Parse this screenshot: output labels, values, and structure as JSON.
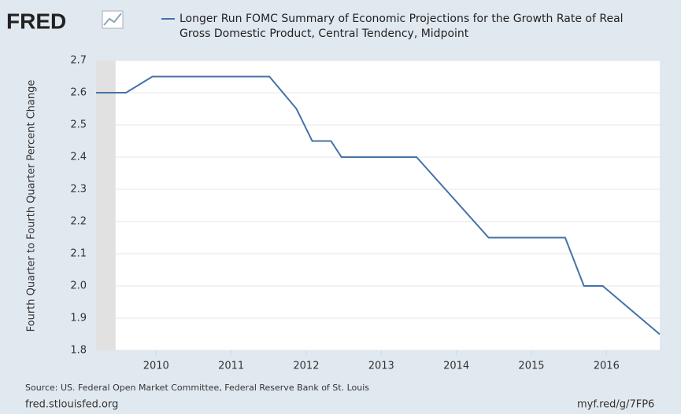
{
  "logo": "FRED",
  "chart_data": {
    "type": "line",
    "series": [
      {
        "name": "Longer Run FOMC Summary of Economic Projections for the Growth Rate of Real Gross Domestic Product, Central Tendency, Midpoint",
        "color": "#4572a7",
        "x": [
          2009.2,
          2009.6,
          2009.95,
          2011.51,
          2011.87,
          2012.08,
          2012.33,
          2012.47,
          2013.47,
          2014.43,
          2015.45,
          2015.7,
          2015.95,
          2016.71
        ],
        "values": [
          2.6,
          2.6,
          2.65,
          2.65,
          2.55,
          2.45,
          2.45,
          2.4,
          2.4,
          2.15,
          2.15,
          2.0,
          2.0,
          1.85
        ]
      }
    ],
    "shaded_ranges": [
      [
        2009.2,
        2009.46
      ]
    ],
    "ylabel": "Fourth Quarter to Fourth Quarter Percent Change",
    "xlim": [
      2009.2,
      2016.71
    ],
    "xticks": [
      2010,
      2011,
      2012,
      2013,
      2014,
      2015,
      2016
    ],
    "ylim": [
      1.8,
      2.7
    ],
    "yticks": [
      1.8,
      1.9,
      {
        "value": 2,
        "label": "2.0"
      },
      2.1,
      2.2,
      2.3,
      2.4,
      2.5,
      2.6,
      2.7
    ],
    "grid": true
  },
  "footer": {
    "source": "Source: US. Federal Open Market Committee, Federal Reserve Bank of St. Louis",
    "site": "fred.stlouisfed.org",
    "short_url": "myf.red/g/7FP6"
  }
}
